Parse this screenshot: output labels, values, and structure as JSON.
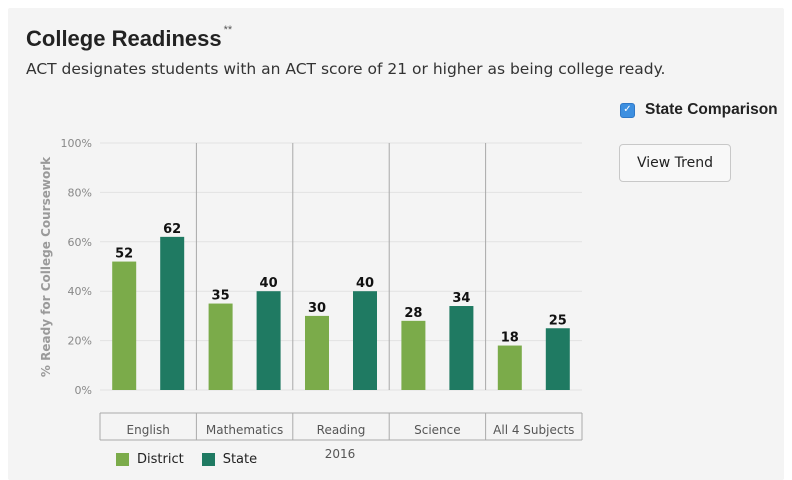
{
  "header": {
    "title": "College Readiness",
    "title_marker": "**",
    "subtitle": "ACT designates students with an ACT score of 21 or higher as being college ready."
  },
  "controls": {
    "state_comparison_label": "State Comparison",
    "state_comparison_checked": true,
    "view_trend_label": "View Trend"
  },
  "colors": {
    "district": "#7bab4a",
    "state": "#1f7a62",
    "grid": "#e2e2e2",
    "axis": "#aaaaaa",
    "divider": "#a8a8a8"
  },
  "chart_data": {
    "type": "bar",
    "categories": [
      "English",
      "Mathematics",
      "Reading",
      "Science",
      "All 4 Subjects"
    ],
    "series": [
      {
        "name": "District",
        "values": [
          52,
          35,
          30,
          28,
          18
        ]
      },
      {
        "name": "State",
        "values": [
          62,
          40,
          40,
          34,
          25
        ]
      }
    ],
    "ylabel": "% Ready for College Coursework",
    "xlabel": "2016",
    "ylim": [
      0,
      100
    ],
    "yticks": [
      "0%",
      "20%",
      "40%",
      "60%",
      "80%",
      "100%"
    ],
    "ytick_values": [
      0,
      20,
      40,
      60,
      80,
      100
    ],
    "grid": true,
    "legend_position": "bottom-left"
  }
}
